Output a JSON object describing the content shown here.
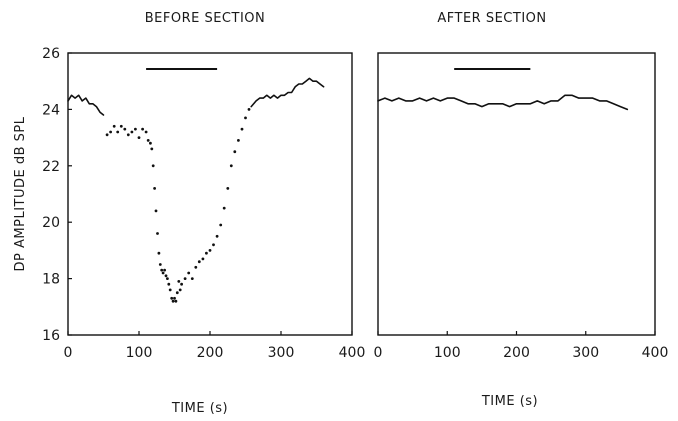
{
  "chart_data": [
    {
      "type": "line",
      "title": "BEFORE SECTION",
      "xlabel": "TIME (s)",
      "ylabel": "DP AMPLITUDE dB SPL",
      "xlim": [
        0,
        400
      ],
      "ylim": [
        16,
        26
      ],
      "xticks": [
        "0",
        "100",
        "200",
        "300",
        "400"
      ],
      "yticks": [
        "16",
        "18",
        "20",
        "22",
        "24",
        "26"
      ],
      "grid": false,
      "stimulus_bar": [
        110,
        210
      ],
      "series": [
        {
          "style": "solid",
          "x": [
            0,
            5,
            10,
            15,
            20,
            25,
            30,
            35,
            40,
            45,
            50
          ],
          "y": [
            24.3,
            24.5,
            24.4,
            24.5,
            24.3,
            24.4,
            24.2,
            24.2,
            24.1,
            23.9,
            23.8
          ]
        },
        {
          "style": "dotted",
          "x": [
            55,
            60,
            65,
            70,
            75,
            80,
            85,
            90,
            95,
            100,
            105,
            110
          ],
          "y": [
            23.1,
            23.2,
            23.4,
            23.2,
            23.4,
            23.3,
            23.1,
            23.2,
            23.3,
            23.0,
            23.3,
            23.2
          ]
        },
        {
          "style": "dotted",
          "x": [
            113,
            116,
            118,
            120,
            122,
            124,
            126,
            128,
            130,
            132,
            134,
            136,
            138,
            140,
            142,
            144,
            146,
            148,
            150,
            152,
            154,
            156,
            158,
            160,
            165,
            170,
            175,
            180,
            185,
            190,
            195,
            200,
            205,
            210,
            215,
            220,
            225,
            230,
            235,
            240,
            245,
            250,
            255
          ],
          "y": [
            22.9,
            22.8,
            22.6,
            22.0,
            21.2,
            20.4,
            19.6,
            18.9,
            18.5,
            18.3,
            18.2,
            18.3,
            18.1,
            18.0,
            17.8,
            17.6,
            17.3,
            17.2,
            17.3,
            17.2,
            17.5,
            17.9,
            17.6,
            17.8,
            18.0,
            18.2,
            18.0,
            18.4,
            18.6,
            18.7,
            18.9,
            19.0,
            19.2,
            19.5,
            19.9,
            20.5,
            21.2,
            22.0,
            22.5,
            22.9,
            23.3,
            23.7,
            24.0
          ]
        },
        {
          "style": "solid",
          "x": [
            258,
            265,
            270,
            275,
            280,
            285,
            290,
            295,
            300,
            305,
            310,
            315,
            320,
            325,
            330,
            335,
            340,
            345,
            350,
            355,
            360
          ],
          "y": [
            24.1,
            24.3,
            24.4,
            24.4,
            24.5,
            24.4,
            24.5,
            24.4,
            24.5,
            24.5,
            24.6,
            24.6,
            24.8,
            24.9,
            24.9,
            25.0,
            25.1,
            25.0,
            25.0,
            24.9,
            24.8
          ]
        }
      ]
    },
    {
      "type": "line",
      "title": "AFTER SECTION",
      "xlabel": "TIME (s)",
      "ylabel": "",
      "xlim": [
        0,
        400
      ],
      "ylim": [
        16,
        26
      ],
      "xticks": [
        "0",
        "100",
        "200",
        "300",
        "400"
      ],
      "grid": false,
      "stimulus_bar": [
        110,
        220
      ],
      "series": [
        {
          "style": "solid",
          "x": [
            0,
            10,
            20,
            30,
            40,
            50,
            60,
            70,
            80,
            90,
            100,
            110,
            120,
            130,
            140,
            150,
            160,
            170,
            180,
            190,
            200,
            210,
            220,
            230,
            240,
            250,
            260,
            270,
            280,
            290,
            300,
            310,
            320,
            330,
            340,
            350,
            360
          ],
          "y": [
            24.3,
            24.4,
            24.3,
            24.4,
            24.3,
            24.3,
            24.4,
            24.3,
            24.4,
            24.3,
            24.4,
            24.4,
            24.3,
            24.2,
            24.2,
            24.1,
            24.2,
            24.2,
            24.2,
            24.1,
            24.2,
            24.2,
            24.2,
            24.3,
            24.2,
            24.3,
            24.3,
            24.5,
            24.5,
            24.4,
            24.4,
            24.4,
            24.3,
            24.3,
            24.2,
            24.1,
            24.0
          ]
        }
      ]
    }
  ]
}
